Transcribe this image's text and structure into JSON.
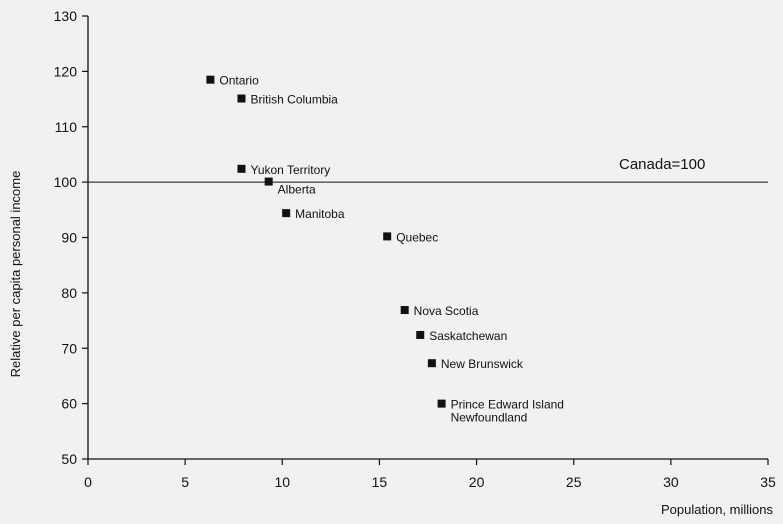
{
  "chart_data": {
    "type": "scatter",
    "title": "",
    "xlabel": "Population, millions",
    "ylabel": "Relative per capita personal income",
    "xlim": [
      0,
      35
    ],
    "ylim": [
      50,
      130
    ],
    "xticks": [
      0,
      5,
      10,
      15,
      20,
      25,
      30,
      35
    ],
    "yticks": [
      50,
      60,
      70,
      80,
      90,
      100,
      110,
      120,
      130
    ],
    "grid": false,
    "reference_line": {
      "y": 100,
      "label": "Canada=100"
    },
    "points": [
      {
        "label": "Ontario",
        "x": 6.3,
        "y": 118.5
      },
      {
        "label": "British Columbia",
        "x": 7.9,
        "y": 115.1
      },
      {
        "label": "Yukon Territory",
        "x": 7.9,
        "y": 102.4
      },
      {
        "label": "Alberta",
        "x": 9.3,
        "y": 100.1
      },
      {
        "label": "Manitoba",
        "x": 10.2,
        "y": 94.4
      },
      {
        "label": "Quebec",
        "x": 15.4,
        "y": 90.2
      },
      {
        "label": "Nova Scotia",
        "x": 16.3,
        "y": 76.9
      },
      {
        "label": "Saskatchewan",
        "x": 17.1,
        "y": 72.4
      },
      {
        "label": "New Brunswick",
        "x": 17.7,
        "y": 67.3
      },
      {
        "label": "Prince Edward Island",
        "x": 18.2,
        "y": 60.0
      },
      {
        "label": "Newfoundland",
        "x": 18.2,
        "y": 59.8
      }
    ]
  }
}
